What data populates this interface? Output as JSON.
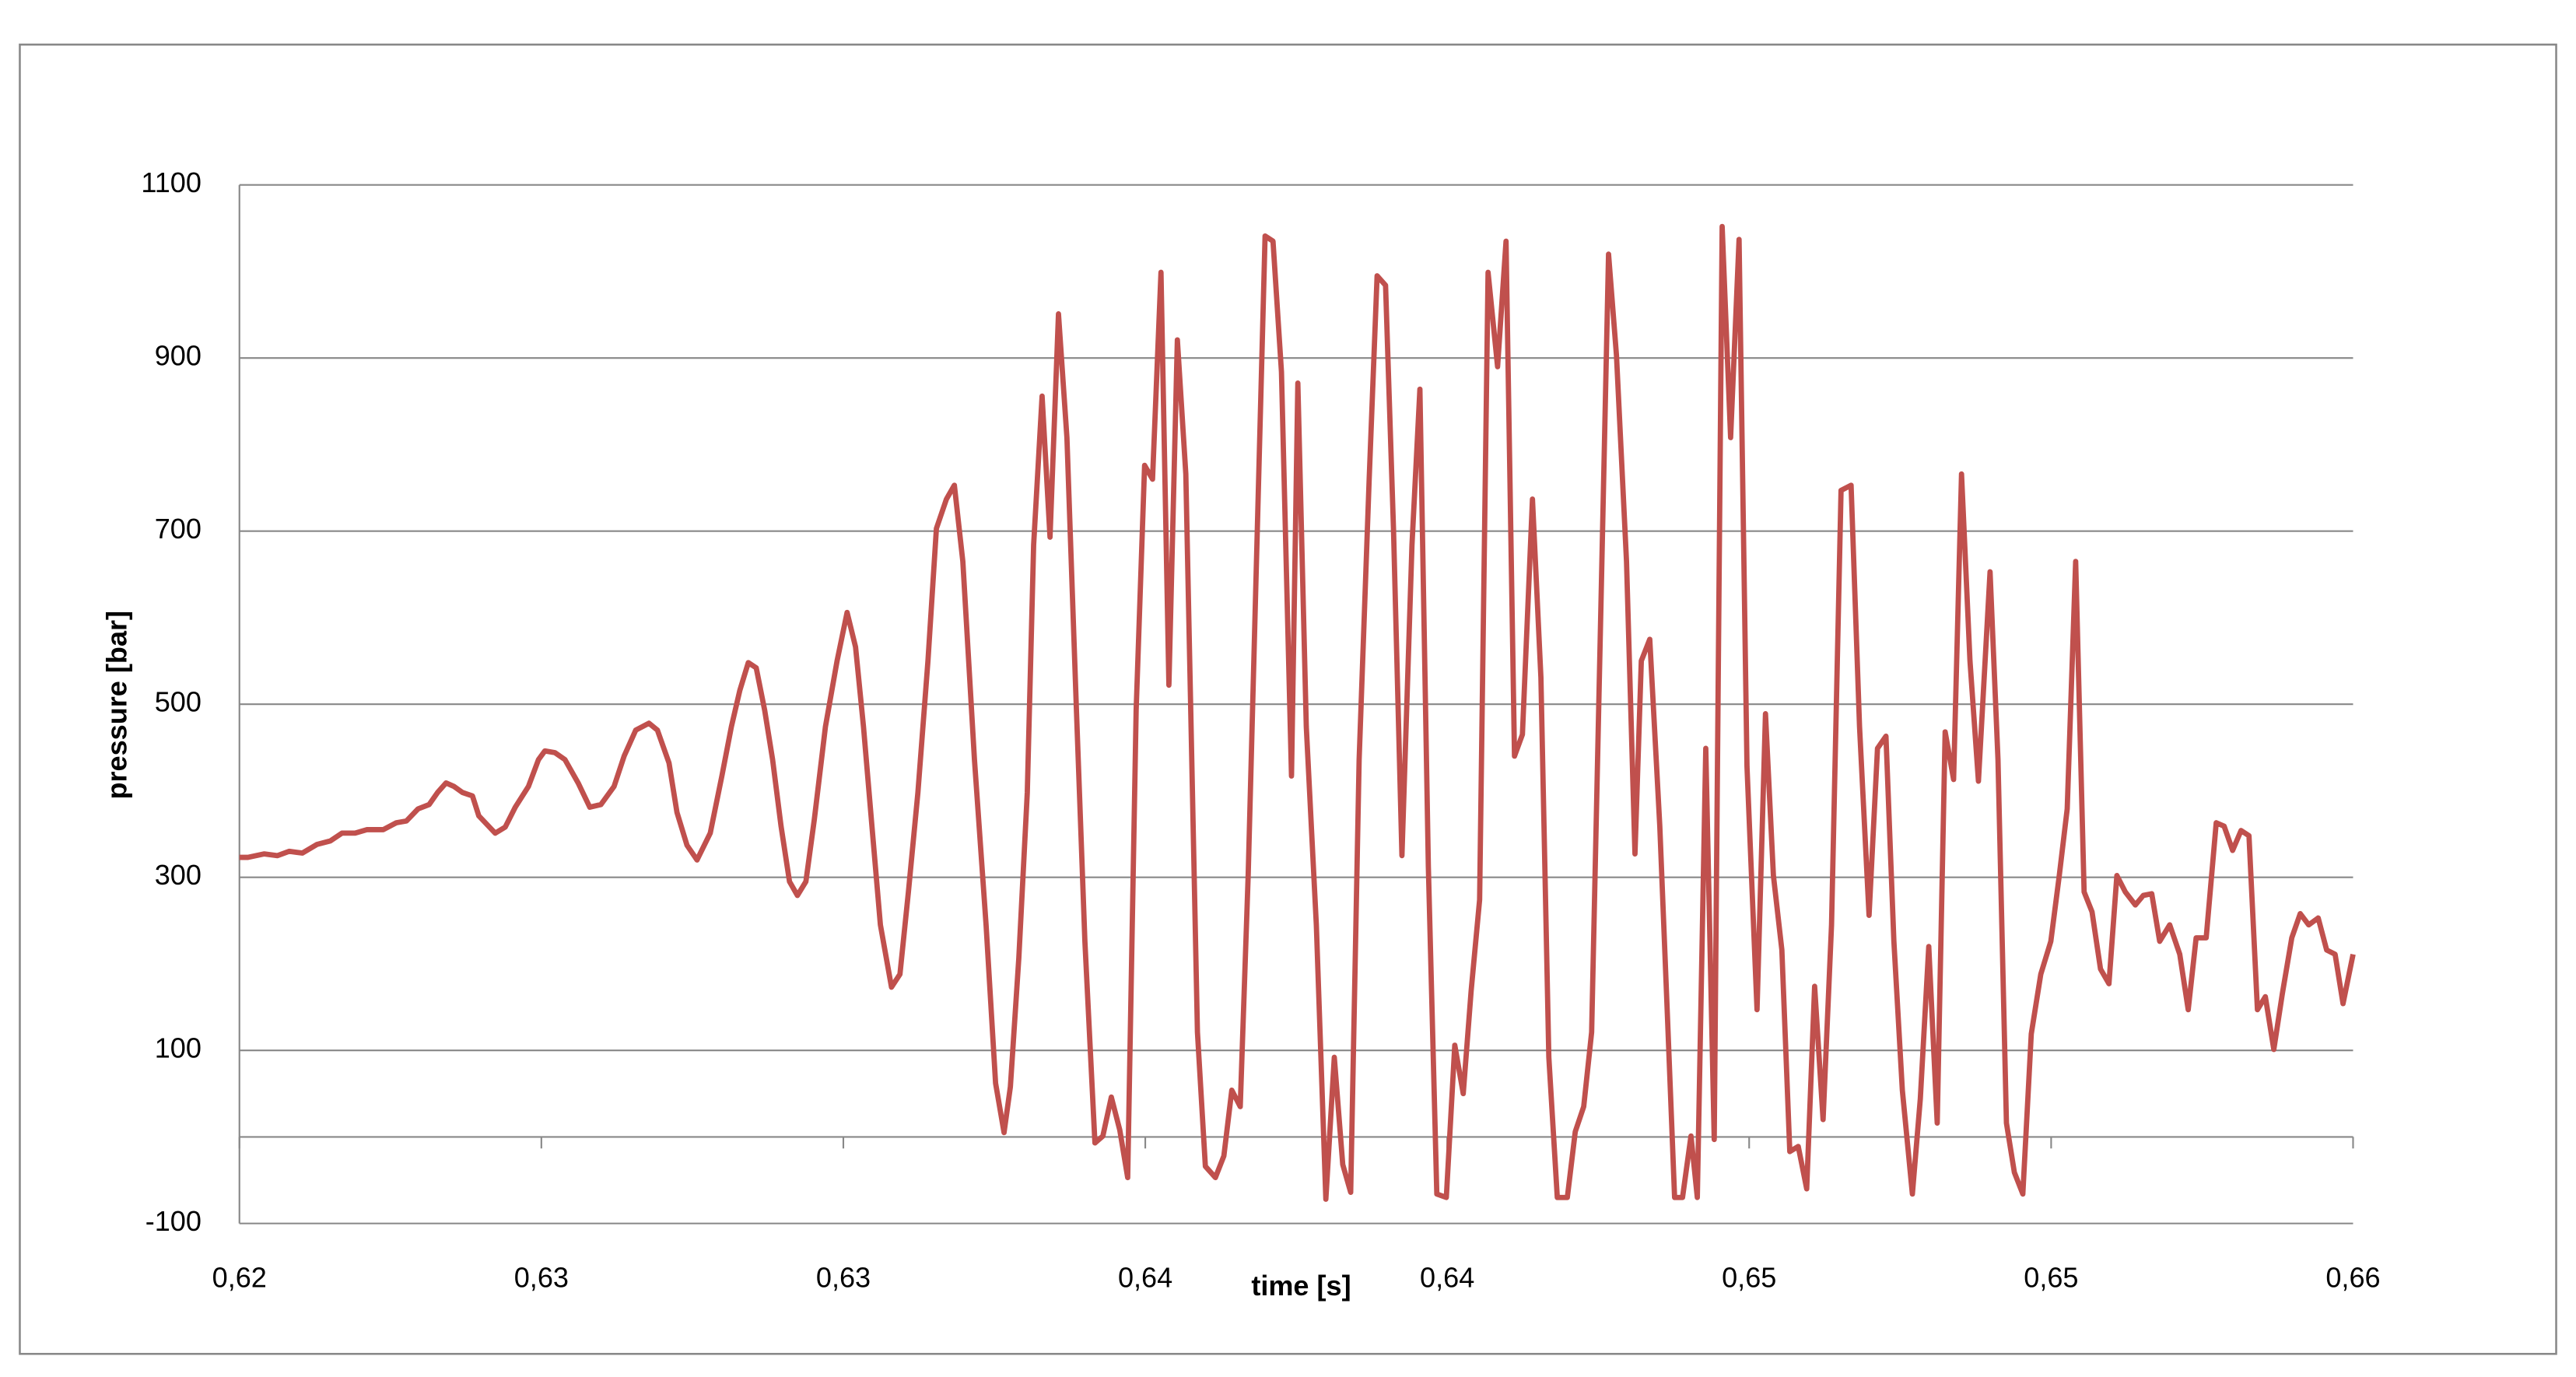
{
  "chart_data": {
    "type": "line",
    "xlabel": "time [s]",
    "ylabel": "pressure [bar]",
    "color": "#c0504d",
    "grid": true,
    "xlim": [
      0.62,
      0.66
    ],
    "ylim": [
      -100,
      1100
    ],
    "xticks": [
      {
        "value": 0.62,
        "label": "0,62"
      },
      {
        "value": 0.625714,
        "label": "0,63"
      },
      {
        "value": 0.631429,
        "label": "0,63"
      },
      {
        "value": 0.637143,
        "label": "0,64"
      },
      {
        "value": 0.642857,
        "label": "0,64"
      },
      {
        "value": 0.648571,
        "label": "0,65"
      },
      {
        "value": 0.654286,
        "label": "0,65"
      },
      {
        "value": 0.66,
        "label": "0,66"
      }
    ],
    "yticks": [
      -100,
      100,
      300,
      500,
      700,
      900,
      1100
    ],
    "x": [
      0.62,
      0.62016,
      0.62047,
      0.62072,
      0.62094,
      0.62119,
      0.62147,
      0.62172,
      0.62194,
      0.62219,
      0.62241,
      0.62272,
      0.62297,
      0.62316,
      0.62338,
      0.62359,
      0.62375,
      0.62391,
      0.62406,
      0.62422,
      0.62441,
      0.62453,
      0.62484,
      0.62503,
      0.62522,
      0.62547,
      0.62566,
      0.62578,
      0.62597,
      0.62616,
      0.62641,
      0.62663,
      0.62684,
      0.62709,
      0.62728,
      0.6275,
      0.62775,
      0.62791,
      0.62813,
      0.62828,
      0.62847,
      0.62866,
      0.62891,
      0.62913,
      0.62931,
      0.62947,
      0.62963,
      0.62978,
      0.62994,
      0.63009,
      0.63025,
      0.63041,
      0.63056,
      0.63072,
      0.63088,
      0.63109,
      0.63131,
      0.6315,
      0.63166,
      0.63181,
      0.63197,
      0.63213,
      0.63234,
      0.6325,
      0.63266,
      0.63284,
      0.63303,
      0.63319,
      0.63338,
      0.63353,
      0.63369,
      0.63391,
      0.63413,
      0.63431,
      0.63447,
      0.63459,
      0.63475,
      0.63491,
      0.63503,
      0.63519,
      0.63534,
      0.6355,
      0.63566,
      0.63584,
      0.636,
      0.63619,
      0.63634,
      0.6365,
      0.63666,
      0.63681,
      0.63697,
      0.63713,
      0.63728,
      0.63744,
      0.63759,
      0.63775,
      0.63791,
      0.63813,
      0.63828,
      0.63847,
      0.63863,
      0.63878,
      0.63894,
      0.63909,
      0.63928,
      0.63941,
      0.63956,
      0.63972,
      0.63991,
      0.64003,
      0.64019,
      0.64038,
      0.64056,
      0.64072,
      0.64088,
      0.64103,
      0.64119,
      0.64138,
      0.64153,
      0.64169,
      0.64184,
      0.642,
      0.64219,
      0.64234,
      0.6425,
      0.64266,
      0.64284,
      0.643,
      0.64316,
      0.64331,
      0.64347,
      0.64363,
      0.64381,
      0.64397,
      0.64413,
      0.64428,
      0.64447,
      0.64463,
      0.64478,
      0.64494,
      0.64513,
      0.64528,
      0.64544,
      0.64559,
      0.64575,
      0.64591,
      0.64606,
      0.64625,
      0.64641,
      0.64653,
      0.64669,
      0.64688,
      0.64703,
      0.64716,
      0.64731,
      0.64747,
      0.64759,
      0.64775,
      0.64791,
      0.64806,
      0.64822,
      0.64838,
      0.64853,
      0.64872,
      0.64888,
      0.64903,
      0.64919,
      0.64934,
      0.6495,
      0.64966,
      0.64981,
      0.64997,
      0.65013,
      0.65031,
      0.6505,
      0.65066,
      0.65084,
      0.651,
      0.65116,
      0.65131,
      0.65147,
      0.65166,
      0.65181,
      0.65197,
      0.65213,
      0.65228,
      0.65244,
      0.65259,
      0.65275,
      0.65291,
      0.65313,
      0.65328,
      0.65344,
      0.65359,
      0.65375,
      0.65391,
      0.65409,
      0.65428,
      0.65444,
      0.65459,
      0.65475,
      0.65491,
      0.65506,
      0.65522,
      0.65538,
      0.65553,
      0.65569,
      0.65588,
      0.65603,
      0.65619,
      0.65634,
      0.65653,
      0.65672,
      0.65688,
      0.65703,
      0.65722,
      0.65741,
      0.65756,
      0.65772,
      0.65788,
      0.65803,
      0.65819,
      0.65834,
      0.6585,
      0.65866,
      0.65884,
      0.659,
      0.65916,
      0.65934,
      0.6595,
      0.65966,
      0.65981,
      0.66
    ],
    "values": [
      323,
      323,
      327,
      325,
      330,
      328,
      338,
      342,
      351,
      351,
      355,
      355,
      363,
      365,
      379,
      384,
      398,
      409,
      405,
      398,
      394,
      371,
      351,
      358,
      381,
      405,
      436,
      446,
      444,
      436,
      409,
      381,
      384,
      405,
      440,
      470,
      478,
      470,
      432,
      375,
      337,
      320,
      351,
      417,
      474,
      516,
      548,
      542,
      493,
      436,
      359,
      295,
      279,
      295,
      367,
      474,
      550,
      606,
      566,
      474,
      359,
      245,
      173,
      188,
      283,
      398,
      550,
      703,
      737,
      753,
      665,
      436,
      245,
      62,
      5,
      58,
      207,
      398,
      684,
      856,
      693,
      951,
      808,
      493,
      226,
      -7,
      1,
      46,
      8,
      -47,
      493,
      776,
      760,
      999,
      522,
      921,
      766,
      121,
      -34,
      -47,
      -22,
      54,
      35,
      302,
      741,
      1041,
      1035,
      884,
      417,
      871,
      474,
      245,
      -72,
      92,
      -32,
      -64,
      436,
      760,
      995,
      984,
      703,
      325,
      684,
      864,
      312,
      -66,
      -70,
      106,
      50,
      169,
      274,
      999,
      890,
      1035,
      440,
      465,
      737,
      531,
      92,
      -70,
      -70,
      6,
      35,
      121,
      569,
      1020,
      903,
      665,
      327,
      550,
      575,
      359,
      131,
      -70,
      -70,
      1,
      -70,
      449,
      -3,
      1052,
      808,
      1037,
      428,
      147,
      489,
      302,
      216,
      -17,
      -11,
      -60,
      174,
      20,
      245,
      747,
      753,
      474,
      256,
      449,
      463,
      226,
      54,
      -66,
      44,
      220,
      16,
      468,
      413,
      766,
      550,
      411,
      653,
      436,
      16,
      -41,
      -66,
      119,
      188,
      226,
      302,
      379,
      665,
      283,
      260,
      194,
      177,
      302,
      283,
      268,
      279,
      281,
      226,
      245,
      211,
      147,
      230,
      230,
      363,
      359,
      331,
      354,
      348,
      147,
      162,
      101,
      165,
      230,
      258,
      245,
      253,
      216,
      211,
      154,
      211
    ]
  }
}
